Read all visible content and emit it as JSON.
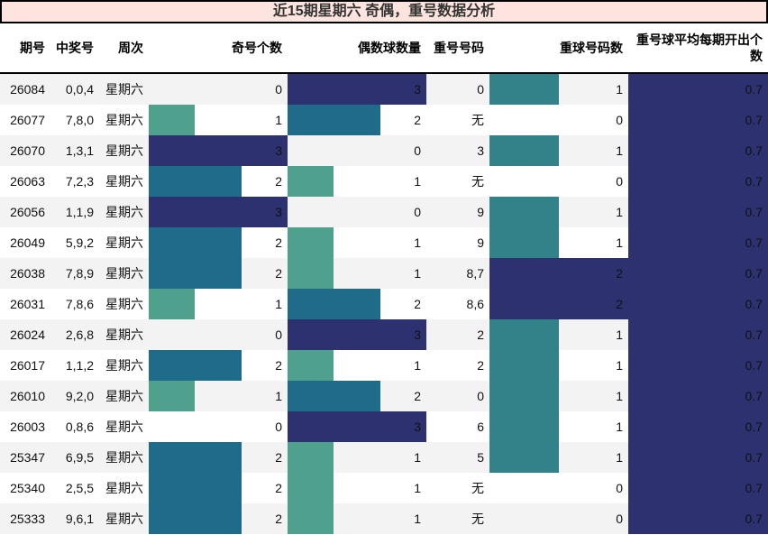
{
  "title": "近15期星期六 奇偶，重号数据分析",
  "colors": {
    "title_bg": "#fde4de",
    "bar_1": "#50a08e",
    "bar_2": "#1f6b8a",
    "bar_3": "#2d3170",
    "repeat_bar_1": "#328289",
    "repeat_bar_2": "#2d3170",
    "avg_bar": "#2d3170",
    "row_stripe": "#f3f3f3"
  },
  "headers": {
    "issue": "期号",
    "winning": "中奖号",
    "weekday": "周次",
    "odd_count": "奇号个数",
    "even_count": "偶数球数量",
    "repeat_numbers": "重号号码",
    "repeat_count": "重球号码数",
    "avg_repeat": "重号球平均每期开出个数"
  },
  "rows": [
    {
      "issue": "26084",
      "winning": "0,0,4",
      "weekday": "星期六",
      "odd": "0",
      "even": "3",
      "repeat": "0",
      "repeat_count": "1",
      "avg": "0.7"
    },
    {
      "issue": "26077",
      "winning": "7,8,0",
      "weekday": "星期六",
      "odd": "1",
      "even": "2",
      "repeat": "无",
      "repeat_count": "0",
      "avg": "0.7"
    },
    {
      "issue": "26070",
      "winning": "1,3,1",
      "weekday": "星期六",
      "odd": "3",
      "even": "0",
      "repeat": "3",
      "repeat_count": "1",
      "avg": "0.7"
    },
    {
      "issue": "26063",
      "winning": "7,2,3",
      "weekday": "星期六",
      "odd": "2",
      "even": "1",
      "repeat": "无",
      "repeat_count": "0",
      "avg": "0.7"
    },
    {
      "issue": "26056",
      "winning": "1,1,9",
      "weekday": "星期六",
      "odd": "3",
      "even": "0",
      "repeat": "9",
      "repeat_count": "1",
      "avg": "0.7"
    },
    {
      "issue": "26049",
      "winning": "5,9,2",
      "weekday": "星期六",
      "odd": "2",
      "even": "1",
      "repeat": "9",
      "repeat_count": "1",
      "avg": "0.7"
    },
    {
      "issue": "26038",
      "winning": "7,8,9",
      "weekday": "星期六",
      "odd": "2",
      "even": "1",
      "repeat": "8,7",
      "repeat_count": "2",
      "avg": "0.7"
    },
    {
      "issue": "26031",
      "winning": "7,8,6",
      "weekday": "星期六",
      "odd": "1",
      "even": "2",
      "repeat": "8,6",
      "repeat_count": "2",
      "avg": "0.7"
    },
    {
      "issue": "26024",
      "winning": "2,6,8",
      "weekday": "星期六",
      "odd": "0",
      "even": "3",
      "repeat": "2",
      "repeat_count": "1",
      "avg": "0.7"
    },
    {
      "issue": "26017",
      "winning": "1,1,2",
      "weekday": "星期六",
      "odd": "2",
      "even": "1",
      "repeat": "2",
      "repeat_count": "1",
      "avg": "0.7"
    },
    {
      "issue": "26010",
      "winning": "9,2,0",
      "weekday": "星期六",
      "odd": "1",
      "even": "2",
      "repeat": "0",
      "repeat_count": "1",
      "avg": "0.7"
    },
    {
      "issue": "26003",
      "winning": "0,8,6",
      "weekday": "星期六",
      "odd": "0",
      "even": "3",
      "repeat": "6",
      "repeat_count": "1",
      "avg": "0.7"
    },
    {
      "issue": "25347",
      "winning": "6,9,5",
      "weekday": "星期六",
      "odd": "2",
      "even": "1",
      "repeat": "5",
      "repeat_count": "1",
      "avg": "0.7"
    },
    {
      "issue": "25340",
      "winning": "2,5,5",
      "weekday": "星期六",
      "odd": "2",
      "even": "1",
      "repeat": "无",
      "repeat_count": "0",
      "avg": "0.7"
    },
    {
      "issue": "25333",
      "winning": "9,6,1",
      "weekday": "星期六",
      "odd": "2",
      "even": "1",
      "repeat": "无",
      "repeat_count": "0",
      "avg": "0.7"
    }
  ]
}
